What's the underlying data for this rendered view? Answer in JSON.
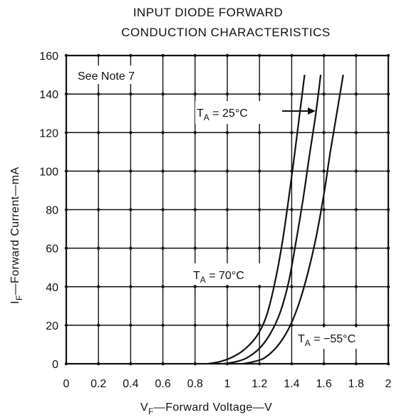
{
  "chart_data": {
    "type": "line",
    "title_line1": "INPUT DIODE FORWARD",
    "title_line2": "CONDUCTION CHARACTERISTICS",
    "xlabel": {
      "main": "V",
      "sub": "F",
      "rest": "—Forward Voltage—V"
    },
    "ylabel": {
      "main": "I",
      "sub": "F",
      "rest": "—Forward Current—mA"
    },
    "xlim": [
      0,
      2
    ],
    "ylim": [
      0,
      160
    ],
    "x_ticks": [
      0,
      0.2,
      0.4,
      0.6,
      0.8,
      1,
      1.2,
      1.4,
      1.6,
      1.8,
      2
    ],
    "x_tick_labels": [
      "0",
      "0.2",
      "0.4",
      "0.6",
      "0.8",
      "1",
      "1.2",
      "1.4",
      "1.6",
      "1.8",
      "2"
    ],
    "y_ticks": [
      0,
      20,
      40,
      60,
      80,
      100,
      120,
      140,
      160
    ],
    "y_tick_labels": [
      "0",
      "20",
      "40",
      "60",
      "80",
      "100",
      "120",
      "140",
      "160"
    ],
    "grid": true,
    "note": "See Note 7",
    "series": [
      {
        "name": "TA = 70°C",
        "points": [
          [
            0.88,
            0
          ],
          [
            0.95,
            1
          ],
          [
            1.02,
            3
          ],
          [
            1.1,
            7
          ],
          [
            1.18,
            14
          ],
          [
            1.24,
            24
          ],
          [
            1.29,
            40
          ],
          [
            1.34,
            62
          ],
          [
            1.38,
            85
          ],
          [
            1.42,
            110
          ],
          [
            1.45,
            130
          ],
          [
            1.48,
            150
          ]
        ]
      },
      {
        "name": "TA = 25°C",
        "points": [
          [
            0.98,
            0
          ],
          [
            1.05,
            1
          ],
          [
            1.12,
            3
          ],
          [
            1.2,
            8
          ],
          [
            1.27,
            16
          ],
          [
            1.33,
            27
          ],
          [
            1.38,
            42
          ],
          [
            1.42,
            60
          ],
          [
            1.47,
            85
          ],
          [
            1.51,
            108
          ],
          [
            1.55,
            130
          ],
          [
            1.58,
            150
          ]
        ]
      },
      {
        "name": "TA = −55°C",
        "points": [
          [
            1.1,
            0
          ],
          [
            1.16,
            1
          ],
          [
            1.23,
            3
          ],
          [
            1.31,
            9
          ],
          [
            1.38,
            18
          ],
          [
            1.44,
            30
          ],
          [
            1.5,
            47
          ],
          [
            1.55,
            65
          ],
          [
            1.6,
            88
          ],
          [
            1.64,
            110
          ],
          [
            1.68,
            130
          ],
          [
            1.72,
            150
          ]
        ]
      }
    ],
    "annotations": [
      {
        "label": {
          "T": "T",
          "A": "A",
          "rest": " = 25°C"
        }
      },
      {
        "label": {
          "T": "T",
          "A": "A",
          "rest": " = 70°C"
        }
      },
      {
        "label": {
          "T": "T",
          "A": "A",
          "rest": " = −55°C"
        }
      }
    ]
  }
}
